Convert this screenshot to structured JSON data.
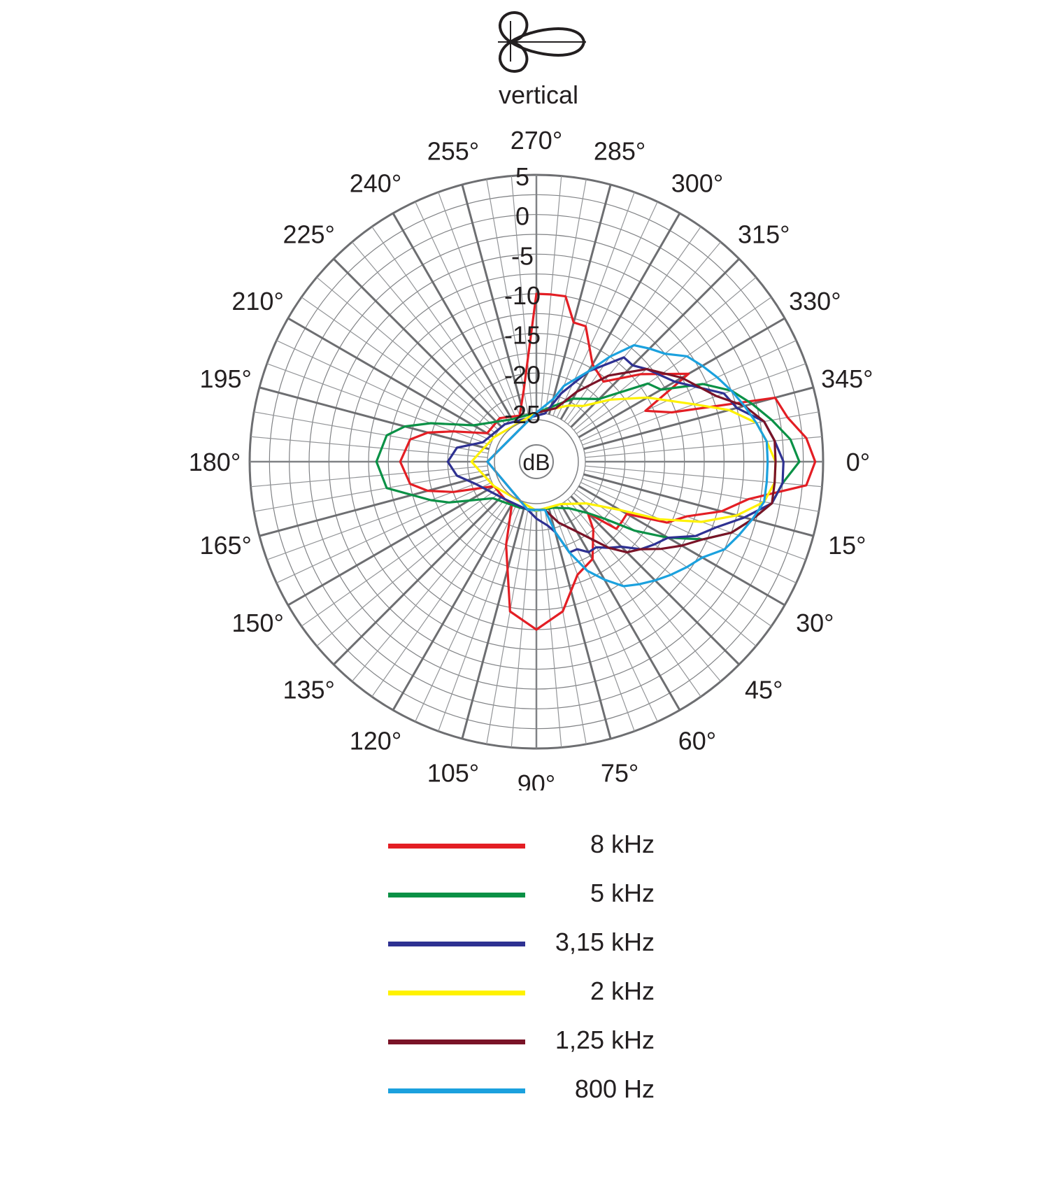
{
  "header": {
    "title": "vertical"
  },
  "chart_data": {
    "type": "polar",
    "title": "vertical",
    "radial_unit_label": "dB",
    "radial_ticks": [
      "5",
      "0",
      "-5",
      "-10",
      "-15",
      "-20",
      "-25"
    ],
    "rlim": [
      -25,
      5
    ],
    "angle_labels": [
      "0°",
      "15°",
      "30°",
      "45°",
      "60°",
      "75°",
      "90°",
      "105°",
      "120°",
      "135°",
      "150°",
      "165°",
      "180°",
      "195°",
      "210°",
      "225°",
      "240°",
      "255°",
      "270°",
      "285°",
      "300°",
      "315°",
      "330°",
      "345°"
    ],
    "angle_direction": "clockwise from right",
    "grid": true,
    "legend_position": "bottom",
    "series": [
      {
        "name": "8 kHz",
        "color": "#e31e24",
        "points": [
          [
            0,
            4
          ],
          [
            5,
            3
          ],
          [
            10,
            -4
          ],
          [
            15,
            -7
          ],
          [
            20,
            -11
          ],
          [
            25,
            -13
          ],
          [
            30,
            -18
          ],
          [
            35,
            -18
          ],
          [
            40,
            -18
          ],
          [
            45,
            -22
          ],
          [
            50,
            -20
          ],
          [
            60,
            -17
          ],
          [
            70,
            -16
          ],
          [
            80,
            -12
          ],
          [
            90,
            -10
          ],
          [
            100,
            -12
          ],
          [
            110,
            -20
          ],
          [
            120,
            -25
          ],
          [
            130,
            -25
          ],
          [
            150,
            -25
          ],
          [
            160,
            -20
          ],
          [
            165,
            -17
          ],
          [
            170,
            -15
          ],
          [
            180,
            -14
          ],
          [
            190,
            -15
          ],
          [
            195,
            -17
          ],
          [
            200,
            -20
          ],
          [
            210,
            -24
          ],
          [
            230,
            -24
          ],
          [
            250,
            -25
          ],
          [
            260,
            -22
          ],
          [
            270,
            -10
          ],
          [
            275,
            -10
          ],
          [
            280,
            -10
          ],
          [
            285,
            -13
          ],
          [
            290,
            -13
          ],
          [
            300,
            -17
          ],
          [
            310,
            -18
          ],
          [
            320,
            -14
          ],
          [
            330,
            -9
          ],
          [
            335,
            -16
          ],
          [
            340,
            -13
          ],
          [
            345,
            0
          ],
          [
            350,
            1
          ],
          [
            355,
            3
          ]
        ]
      },
      {
        "name": "5 kHz",
        "color": "#0a9146",
        "points": [
          [
            0,
            2
          ],
          [
            5,
            0
          ],
          [
            10,
            -1
          ],
          [
            15,
            -3
          ],
          [
            20,
            -5
          ],
          [
            25,
            -8
          ],
          [
            30,
            -12
          ],
          [
            35,
            -16
          ],
          [
            40,
            -20
          ],
          [
            45,
            -22
          ],
          [
            55,
            -24
          ],
          [
            70,
            -25
          ],
          [
            90,
            -25
          ],
          [
            110,
            -25
          ],
          [
            140,
            -24
          ],
          [
            155,
            -19
          ],
          [
            160,
            -17
          ],
          [
            170,
            -12
          ],
          [
            180,
            -11
          ],
          [
            190,
            -12
          ],
          [
            195,
            -14
          ],
          [
            200,
            -17
          ],
          [
            210,
            -22
          ],
          [
            240,
            -25
          ],
          [
            270,
            -25
          ],
          [
            300,
            -22
          ],
          [
            315,
            -20
          ],
          [
            325,
            -14
          ],
          [
            330,
            -13
          ],
          [
            335,
            -8
          ],
          [
            340,
            -5
          ],
          [
            345,
            -3
          ],
          [
            350,
            -1
          ],
          [
            355,
            1
          ]
        ]
      },
      {
        "name": "3,15 kHz",
        "color": "#2e3192",
        "points": [
          [
            0,
            0
          ],
          [
            5,
            0
          ],
          [
            10,
            -1
          ],
          [
            15,
            -4
          ],
          [
            20,
            -7
          ],
          [
            25,
            -9
          ],
          [
            30,
            -12
          ],
          [
            35,
            -13
          ],
          [
            40,
            -14
          ],
          [
            45,
            -16
          ],
          [
            50,
            -17
          ],
          [
            55,
            -18
          ],
          [
            60,
            -18
          ],
          [
            65,
            -19
          ],
          [
            70,
            -19
          ],
          [
            75,
            -22
          ],
          [
            80,
            -23
          ],
          [
            90,
            -24
          ],
          [
            100,
            -25
          ],
          [
            130,
            -25
          ],
          [
            160,
            -23
          ],
          [
            170,
            -21
          ],
          [
            180,
            -20
          ],
          [
            190,
            -21
          ],
          [
            200,
            -24
          ],
          [
            230,
            -25
          ],
          [
            280,
            -25
          ],
          [
            290,
            -22
          ],
          [
            300,
            -18
          ],
          [
            310,
            -14
          ],
          [
            315,
            -14
          ],
          [
            320,
            -13
          ],
          [
            330,
            -11
          ],
          [
            340,
            -6
          ],
          [
            345,
            -5
          ],
          [
            350,
            -2
          ],
          [
            355,
            -1
          ]
        ]
      },
      {
        "name": "2 kHz",
        "color": "#fff200",
        "points": [
          [
            0,
            -1
          ],
          [
            5,
            -1
          ],
          [
            10,
            -2
          ],
          [
            15,
            -5
          ],
          [
            20,
            -9
          ],
          [
            25,
            -14
          ],
          [
            30,
            -19
          ],
          [
            40,
            -23
          ],
          [
            60,
            -25
          ],
          [
            90,
            -25
          ],
          [
            150,
            -25
          ],
          [
            170,
            -24
          ],
          [
            180,
            -23
          ],
          [
            190,
            -24
          ],
          [
            210,
            -25
          ],
          [
            270,
            -25
          ],
          [
            290,
            -24
          ],
          [
            300,
            -23
          ],
          [
            310,
            -22
          ],
          [
            320,
            -19
          ],
          [
            330,
            -15
          ],
          [
            340,
            -10
          ],
          [
            345,
            -6
          ],
          [
            350,
            -3
          ],
          [
            355,
            -2
          ]
        ]
      },
      {
        "name": "1,25 kHz",
        "color": "#7a1327",
        "points": [
          [
            0,
            -1
          ],
          [
            5,
            -1
          ],
          [
            10,
            -1
          ],
          [
            15,
            -3
          ],
          [
            20,
            -5
          ],
          [
            25,
            -8
          ],
          [
            30,
            -10
          ],
          [
            35,
            -12
          ],
          [
            40,
            -14
          ],
          [
            45,
            -15
          ],
          [
            50,
            -17
          ],
          [
            60,
            -21
          ],
          [
            70,
            -23
          ],
          [
            80,
            -25
          ],
          [
            100,
            -25
          ],
          [
            180,
            -25
          ],
          [
            270,
            -25
          ],
          [
            290,
            -24
          ],
          [
            300,
            -21
          ],
          [
            310,
            -17
          ],
          [
            320,
            -13
          ],
          [
            330,
            -10
          ],
          [
            340,
            -7
          ],
          [
            345,
            -4
          ],
          [
            350,
            -2
          ],
          [
            355,
            -1
          ]
        ]
      },
      {
        "name": "800 Hz",
        "color": "#1ba1de",
        "points": [
          [
            0,
            -2
          ],
          [
            5,
            -2
          ],
          [
            10,
            -2
          ],
          [
            15,
            -3
          ],
          [
            20,
            -4
          ],
          [
            25,
            -5
          ],
          [
            30,
            -7
          ],
          [
            35,
            -8
          ],
          [
            40,
            -9
          ],
          [
            45,
            -10
          ],
          [
            50,
            -11
          ],
          [
            55,
            -12
          ],
          [
            60,
            -14
          ],
          [
            65,
            -16
          ],
          [
            70,
            -19
          ],
          [
            75,
            -22
          ],
          [
            80,
            -25
          ],
          [
            100,
            -25
          ],
          [
            180,
            -25
          ],
          [
            270,
            -25
          ],
          [
            285,
            -23
          ],
          [
            290,
            -21
          ],
          [
            300,
            -18
          ],
          [
            305,
            -15
          ],
          [
            310,
            -12
          ],
          [
            315,
            -11
          ],
          [
            320,
            -10
          ],
          [
            325,
            -8
          ],
          [
            330,
            -7
          ],
          [
            335,
            -6
          ],
          [
            340,
            -5
          ],
          [
            345,
            -4
          ],
          [
            350,
            -3
          ],
          [
            355,
            -2
          ]
        ]
      }
    ]
  },
  "legend": {
    "items": [
      {
        "label": "8 kHz",
        "color": "#e31e24"
      },
      {
        "label": "5 kHz",
        "color": "#0a9146"
      },
      {
        "label": "3,15 kHz",
        "color": "#2e3192"
      },
      {
        "label": "2 kHz",
        "color": "#fff200"
      },
      {
        "label": "1,25 kHz",
        "color": "#7a1327"
      },
      {
        "label": "800 Hz",
        "color": "#1ba1de"
      }
    ]
  }
}
